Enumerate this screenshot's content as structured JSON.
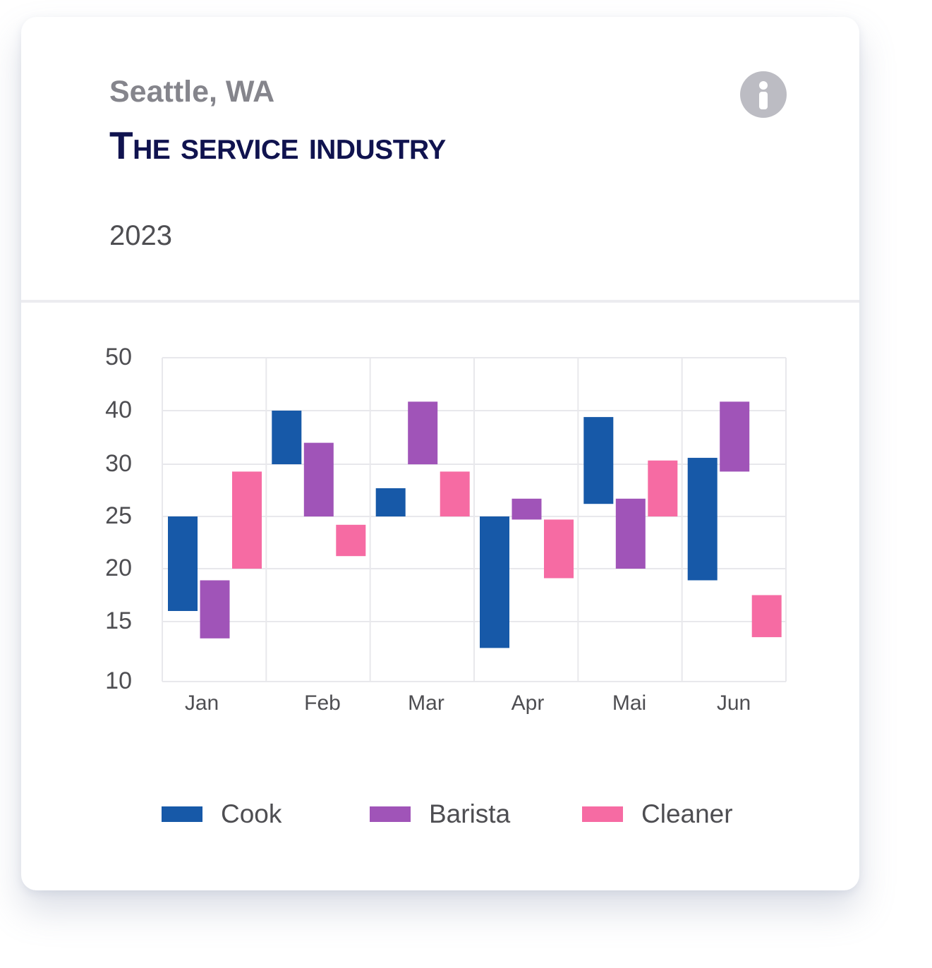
{
  "header": {
    "location": "Seattle, WA",
    "title": "The service industry",
    "year": "2023",
    "info_icon": "info-icon"
  },
  "colors": {
    "Cook": "#1759a8",
    "Barista": "#a054b8",
    "Cleaner": "#f66ba3",
    "grid": "#e8e8ec",
    "info_icon_bg": "#bcbcc3"
  },
  "chart_data": {
    "type": "bar",
    "subtype": "floating-range",
    "categories": [
      "Jan",
      "Feb",
      "Mar",
      "Apr",
      "Mai",
      "Jun"
    ],
    "y_ticks": [
      10,
      15,
      20,
      25,
      30,
      40,
      50
    ],
    "grid": true,
    "legend_position": "bottom",
    "series": [
      {
        "name": "Cook",
        "ranges": [
          [
            16,
            25
          ],
          [
            30,
            40
          ],
          [
            25,
            27.7
          ],
          [
            12.8,
            25
          ],
          [
            26.2,
            38.8
          ],
          [
            18.9,
            31.2
          ]
        ]
      },
      {
        "name": "Barista",
        "ranges": [
          [
            13.6,
            18.9
          ],
          [
            25,
            34
          ],
          [
            30,
            41.7
          ],
          [
            24.7,
            26.7
          ],
          [
            20,
            26.7
          ],
          [
            29.3,
            41.7
          ]
        ]
      },
      {
        "name": "Cleaner",
        "ranges": [
          [
            20,
            29.3
          ],
          [
            21.2,
            24.2
          ],
          [
            25,
            29.3
          ],
          [
            19.1,
            24.7
          ],
          [
            25,
            30.7
          ],
          [
            13.7,
            17.5
          ]
        ]
      }
    ]
  },
  "legend": {
    "items": [
      {
        "label": "Cook",
        "color": "#1759a8"
      },
      {
        "label": "Barista",
        "color": "#a054b8"
      },
      {
        "label": "Cleaner",
        "color": "#f66ba3"
      }
    ]
  }
}
